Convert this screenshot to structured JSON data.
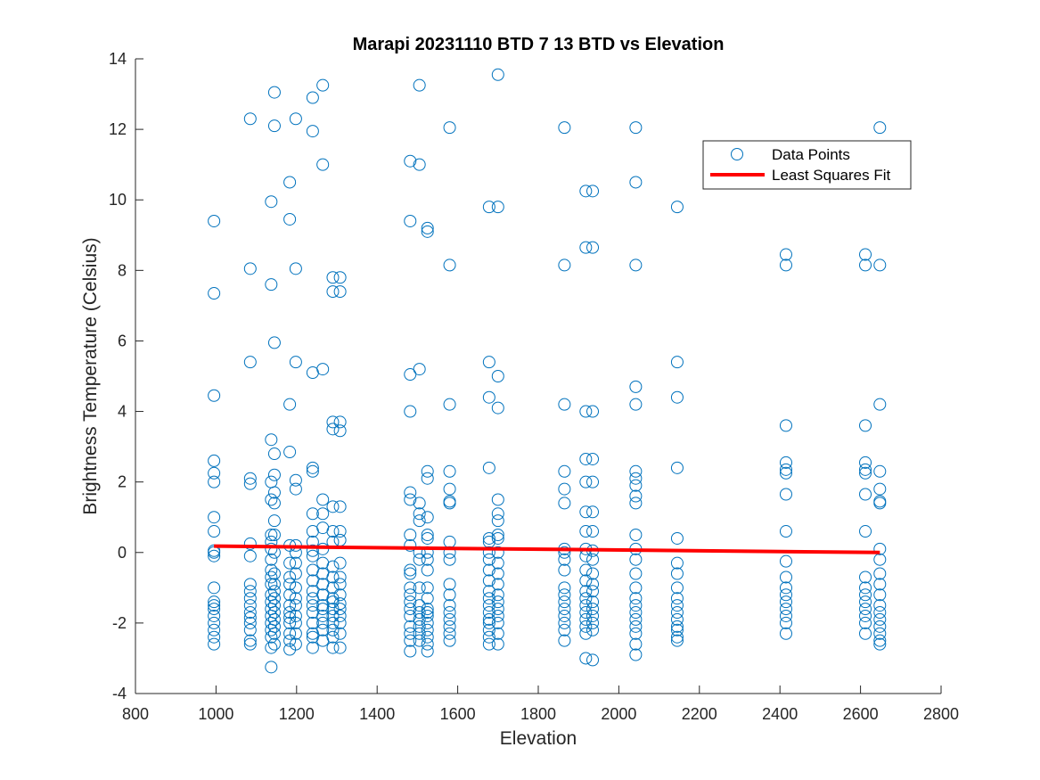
{
  "chart_data": {
    "type": "scatter",
    "title": "Marapi 20231110 BTD 7 13 BTD vs Elevation",
    "xlabel": "Elevation",
    "ylabel": "Brightness Temperature (Celsius)",
    "xlim": [
      800,
      2800
    ],
    "ylim": [
      -4,
      14
    ],
    "xticks": [
      800,
      1000,
      1200,
      1400,
      1600,
      1800,
      2000,
      2200,
      2400,
      2600,
      2800
    ],
    "yticks": [
      -4,
      -2,
      0,
      2,
      4,
      6,
      8,
      10,
      12,
      14
    ],
    "grid": false,
    "legend_position": "top-right",
    "colors": {
      "points": "#0072BD",
      "fit": "#FF0000",
      "axis": "#262626"
    },
    "series": [
      {
        "name": "Data Points",
        "kind": "markers",
        "columns": [
          {
            "x": 995,
            "y": [
              9.4,
              7.35,
              4.45,
              2.6,
              2.25,
              2.0,
              1.0,
              0.6,
              0.05,
              0.0,
              -0.1,
              -1.0,
              -1.4,
              -1.5,
              -1.6,
              -1.8,
              -2.0,
              -2.2,
              -2.4,
              -2.6
            ]
          },
          {
            "x": 1085,
            "y": [
              12.3,
              8.05,
              5.4,
              2.1,
              1.95,
              0.25,
              -0.1,
              -0.9,
              -1.1,
              -1.3,
              -1.5,
              -1.7,
              -1.85,
              -2.0,
              -2.2,
              -2.5,
              -2.6
            ]
          },
          {
            "x": 1137,
            "y": [
              9.95,
              7.6,
              3.2,
              2.0,
              1.5,
              0.5,
              0.3,
              0.1,
              -0.2,
              -0.5,
              -0.7,
              -0.9,
              -1.2,
              -1.4,
              -1.6,
              -1.8,
              -2.0,
              -2.2,
              -2.4,
              -2.7,
              -3.25
            ]
          },
          {
            "x": 1145,
            "y": [
              13.05,
              12.1,
              5.95,
              2.8,
              2.2,
              1.7,
              1.4,
              0.9,
              0.5,
              0.0,
              -0.6,
              -0.9,
              -1.1,
              -1.3,
              -1.5,
              -1.7,
              -1.9,
              -2.1,
              -2.3,
              -2.6
            ]
          },
          {
            "x": 1183,
            "y": [
              10.5,
              9.45,
              4.2,
              2.85,
              0.2,
              -0.3,
              -0.7,
              -0.9,
              -1.2,
              -1.5,
              -1.7,
              -1.85,
              -2.0,
              -2.3,
              -2.5,
              -2.75
            ]
          },
          {
            "x": 1198,
            "y": [
              12.3,
              8.05,
              5.4,
              2.05,
              1.8,
              0.2,
              0.0,
              -0.3,
              -0.6,
              -1.0,
              -1.3,
              -1.5,
              -1.8,
              -2.0,
              -2.3,
              -2.6
            ]
          },
          {
            "x": 1240,
            "y": [
              12.9,
              11.95,
              5.1,
              2.4,
              2.3,
              1.1,
              0.6,
              0.3,
              0.05,
              -0.1,
              -0.5,
              -0.8,
              -1.1,
              -1.3,
              -1.5,
              -1.7,
              -2.0,
              -2.3,
              -2.4,
              -2.7
            ]
          },
          {
            "x": 1265,
            "y": [
              13.25,
              11.0,
              5.2,
              1.5,
              1.1,
              0.7,
              0.1,
              -0.3,
              -0.6,
              -0.9,
              -1.2,
              -1.5,
              -1.6,
              -1.8,
              -2.0,
              -2.2,
              -2.5
            ]
          },
          {
            "x": 1290,
            "y": [
              7.8,
              7.4,
              3.7,
              3.5,
              1.3,
              0.6,
              0.3,
              -0.4,
              -0.7,
              -1.0,
              -1.3,
              -1.4,
              -1.6,
              -1.8,
              -2.0,
              -2.2,
              -2.4,
              -2.7
            ]
          },
          {
            "x": 1308,
            "y": [
              7.8,
              7.4,
              3.7,
              3.45,
              1.3,
              0.6,
              0.35,
              -0.3,
              -0.7,
              -0.9,
              -1.2,
              -1.45,
              -1.6,
              -1.8,
              -2.0,
              -2.3,
              -2.7
            ]
          },
          {
            "x": 1482,
            "y": [
              11.1,
              9.4,
              5.05,
              4.0,
              1.7,
              1.5,
              0.5,
              0.2,
              -0.5,
              -0.6,
              -1.0,
              -1.2,
              -1.4,
              -1.6,
              -1.8,
              -2.1,
              -2.3,
              -2.5,
              -2.8
            ]
          },
          {
            "x": 1505,
            "y": [
              13.25,
              11.0,
              5.2,
              1.4,
              1.1,
              0.9,
              0.0,
              -0.2,
              -1.0,
              -1.5,
              -1.7,
              -1.9,
              -2.1,
              -2.3,
              -2.5
            ]
          },
          {
            "x": 1525,
            "y": [
              9.2,
              9.1,
              2.3,
              2.1,
              1.0,
              0.5,
              0.4,
              0.0,
              -0.2,
              -0.5,
              -1.0,
              -1.3,
              -1.6,
              -1.7,
              -1.8,
              -2.0,
              -2.2,
              -2.4,
              -2.6,
              -2.8
            ]
          },
          {
            "x": 1580,
            "y": [
              12.05,
              8.15,
              4.2,
              2.3,
              1.8,
              1.45,
              1.4,
              0.3,
              0.0,
              -0.2,
              -0.9,
              -1.2,
              -1.5,
              -1.7,
              -1.9,
              -2.1,
              -2.3,
              -2.5
            ]
          },
          {
            "x": 1678,
            "y": [
              9.8,
              5.4,
              4.4,
              2.4,
              0.4,
              0.3,
              0.0,
              -0.2,
              -0.5,
              -0.8,
              -1.1,
              -1.3,
              -1.5,
              -1.7,
              -1.9,
              -2.0,
              -2.2,
              -2.4,
              -2.6
            ]
          },
          {
            "x": 1700,
            "y": [
              13.55,
              9.8,
              5.0,
              4.1,
              1.5,
              1.1,
              0.9,
              0.5,
              0.4,
              0.0,
              -0.3,
              -0.6,
              -0.9,
              -1.2,
              -1.4,
              -1.6,
              -1.8,
              -2.0,
              -2.3,
              -2.6
            ]
          },
          {
            "x": 1865,
            "y": [
              12.05,
              8.15,
              4.2,
              2.3,
              1.8,
              1.4,
              0.1,
              0.0,
              -0.2,
              -0.5,
              -1.0,
              -1.2,
              -1.4,
              -1.6,
              -1.8,
              -2.0,
              -2.2,
              -2.5
            ]
          },
          {
            "x": 1918,
            "y": [
              10.25,
              8.65,
              4.0,
              2.65,
              2.0,
              1.15,
              0.6,
              0.1,
              -0.1,
              -0.5,
              -0.8,
              -1.1,
              -1.3,
              -1.5,
              -1.7,
              -1.9,
              -2.1,
              -2.3,
              -3.0
            ]
          },
          {
            "x": 1935,
            "y": [
              10.25,
              8.65,
              4.0,
              2.65,
              2.0,
              1.15,
              0.6,
              0.05,
              -0.2,
              -0.6,
              -0.9,
              -1.1,
              -1.4,
              -1.6,
              -1.8,
              -2.0,
              -2.2,
              -3.05
            ]
          },
          {
            "x": 2042,
            "y": [
              12.05,
              10.5,
              8.15,
              4.7,
              4.2,
              2.3,
              2.1,
              1.9,
              1.6,
              1.4,
              0.5,
              0.1,
              -0.2,
              -0.6,
              -1.0,
              -1.3,
              -1.5,
              -1.7,
              -1.9,
              -2.1,
              -2.3,
              -2.6,
              -2.9
            ]
          },
          {
            "x": 2145,
            "y": [
              9.8,
              5.4,
              4.4,
              2.4,
              0.4,
              -0.3,
              -0.6,
              -1.0,
              -1.3,
              -1.5,
              -1.7,
              -1.9,
              -2.1,
              -2.2,
              -2.4,
              -2.5
            ]
          },
          {
            "x": 2415,
            "y": [
              8.45,
              8.15,
              3.6,
              2.55,
              2.35,
              2.25,
              1.65,
              0.6,
              -0.25,
              -0.7,
              -1.0,
              -1.2,
              -1.4,
              -1.6,
              -1.8,
              -2.0,
              -2.3
            ]
          },
          {
            "x": 2612,
            "y": [
              8.45,
              8.15,
              3.6,
              2.55,
              2.35,
              2.25,
              1.65,
              0.6,
              -0.7,
              -1.0,
              -1.2,
              -1.4,
              -1.6,
              -1.8,
              -2.0,
              -2.3
            ]
          },
          {
            "x": 2648,
            "y": [
              12.05,
              8.15,
              4.2,
              2.3,
              1.8,
              1.45,
              1.4,
              0.1,
              -0.2,
              -0.6,
              -0.9,
              -1.2,
              -1.5,
              -1.7,
              -1.9,
              -2.1,
              -2.3,
              -2.5,
              -2.6
            ]
          }
        ]
      },
      {
        "name": "Least Squares Fit",
        "kind": "line",
        "x": [
          995,
          2648
        ],
        "y": [
          0.18,
          0.0
        ]
      }
    ]
  }
}
